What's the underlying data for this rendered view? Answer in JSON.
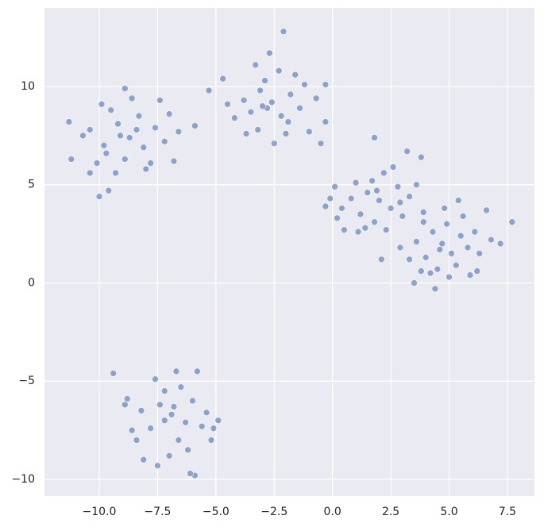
{
  "chart_data": {
    "type": "scatter",
    "xlim": [
      -12.35,
      8.66
    ],
    "ylim": [
      -10.85,
      14.0
    ],
    "xticks": [
      {
        "value": -10,
        "label": "−10.0"
      },
      {
        "value": -7.5,
        "label": "−7.5"
      },
      {
        "value": -5,
        "label": "−5.0"
      },
      {
        "value": -2.5,
        "label": "−2.5"
      },
      {
        "value": 0,
        "label": "0.0"
      },
      {
        "value": 2.5,
        "label": "2.5"
      },
      {
        "value": 5,
        "label": "5.0"
      },
      {
        "value": 7.5,
        "label": "7.5"
      }
    ],
    "yticks": [
      {
        "value": -10,
        "label": "−10"
      },
      {
        "value": -5,
        "label": "−5"
      },
      0,
      5,
      10
    ],
    "grid": true,
    "series": [
      {
        "color": "#4c72b0",
        "x": [
          -8.7,
          -9.2,
          -8.1,
          -9.8,
          -7.6,
          -8.9,
          -9.5,
          -8.3,
          -10.1,
          -7.2,
          -8.6,
          -9.9,
          -7.8,
          -10.4,
          -9.3,
          -7.0,
          -6.6,
          -8.0,
          -9.6,
          -10.0,
          -10.4,
          -8.9,
          -7.4,
          -6.8,
          -9.1,
          -8.4,
          -9.7,
          -10.7,
          -11.3,
          -11.2,
          -5.9,
          -2.6,
          -3.1,
          -2.2,
          -1.8,
          -3.5,
          -2.9,
          -2.3,
          -1.4,
          -3.8,
          -4.2,
          -2.0,
          -3.2,
          -1.2,
          -0.7,
          -4.5,
          -2.7,
          -3.3,
          -2.1,
          -5.3,
          -1.0,
          -0.3,
          -2.5,
          -3.7,
          -1.6,
          -4.7,
          -0.3,
          -0.5,
          -2.8,
          -1.9,
          -3.0,
          -6.9,
          -7.4,
          -6.3,
          -7.8,
          -6.0,
          -7.2,
          -6.6,
          -8.2,
          -5.6,
          -7.6,
          -6.7,
          -5.8,
          -8.4,
          -7.0,
          -6.2,
          -5.4,
          -8.8,
          -8.6,
          -7.5,
          -8.1,
          -5.1,
          -5.2,
          -6.5,
          -7.2,
          -6.8,
          -9.4,
          -5.9,
          -6.1,
          -8.9,
          -4.9,
          2.0,
          1.5,
          2.5,
          1.2,
          2.8,
          0.8,
          2.2,
          3.3,
          1.0,
          1.8,
          0.4,
          2.6,
          3.0,
          1.4,
          0.1,
          -0.3,
          3.6,
          1.7,
          2.3,
          1.1,
          3.2,
          1.8,
          3.8,
          -0.1,
          0.5,
          2.9,
          2.1,
          3.9,
          0.2,
          1.9,
          4.7,
          5.1,
          4.3,
          5.5,
          4.0,
          4.9,
          5.8,
          3.6,
          4.5,
          5.3,
          6.1,
          3.9,
          4.8,
          5.6,
          3.3,
          4.2,
          6.3,
          5.0,
          4.4,
          3.5,
          5.9,
          6.8,
          7.2,
          7.7,
          6.6,
          5.4,
          2.9,
          3.8,
          6.2,
          4.6
        ],
        "y": [
          7.4,
          8.1,
          6.9,
          7.0,
          7.9,
          6.3,
          8.8,
          8.5,
          6.1,
          7.2,
          9.4,
          9.1,
          6.1,
          7.8,
          5.6,
          8.6,
          7.7,
          5.8,
          4.7,
          4.4,
          5.6,
          9.9,
          9.3,
          6.2,
          7.5,
          7.8,
          6.6,
          7.5,
          8.2,
          6.3,
          8.0,
          9.2,
          9.8,
          8.5,
          9.6,
          8.7,
          10.3,
          10.8,
          8.9,
          9.3,
          8.4,
          7.6,
          7.8,
          10.1,
          9.4,
          9.1,
          11.7,
          11.1,
          12.8,
          9.8,
          7.7,
          8.2,
          7.1,
          7.6,
          10.6,
          10.4,
          10.1,
          7.1,
          8.9,
          8.2,
          9.0,
          -6.7,
          -6.2,
          -7.1,
          -7.4,
          -6.0,
          -5.5,
          -8.0,
          -6.5,
          -7.3,
          -4.9,
          -4.5,
          -4.5,
          -8.0,
          -8.8,
          -8.5,
          -6.6,
          -5.9,
          -7.5,
          -9.3,
          -9.0,
          -7.4,
          -8.0,
          -5.3,
          -7.0,
          -6.3,
          -4.6,
          -9.8,
          -9.7,
          -6.2,
          -7.0,
          4.2,
          4.6,
          3.8,
          3.5,
          4.9,
          4.3,
          5.6,
          4.4,
          5.1,
          3.1,
          3.8,
          5.9,
          3.4,
          2.8,
          4.9,
          3.9,
          5.0,
          5.2,
          2.7,
          2.6,
          6.7,
          7.4,
          6.4,
          4.3,
          2.7,
          4.1,
          1.2,
          3.6,
          3.3,
          4.7,
          2.0,
          1.5,
          2.6,
          2.4,
          1.3,
          3.0,
          1.8,
          2.1,
          0.7,
          0.9,
          2.6,
          3.1,
          3.8,
          3.4,
          1.2,
          0.5,
          1.5,
          0.3,
          -0.3,
          0.0,
          0.4,
          2.2,
          2.0,
          3.1,
          3.7,
          4.2,
          1.8,
          0.6,
          0.6,
          1.7
        ]
      }
    ]
  }
}
